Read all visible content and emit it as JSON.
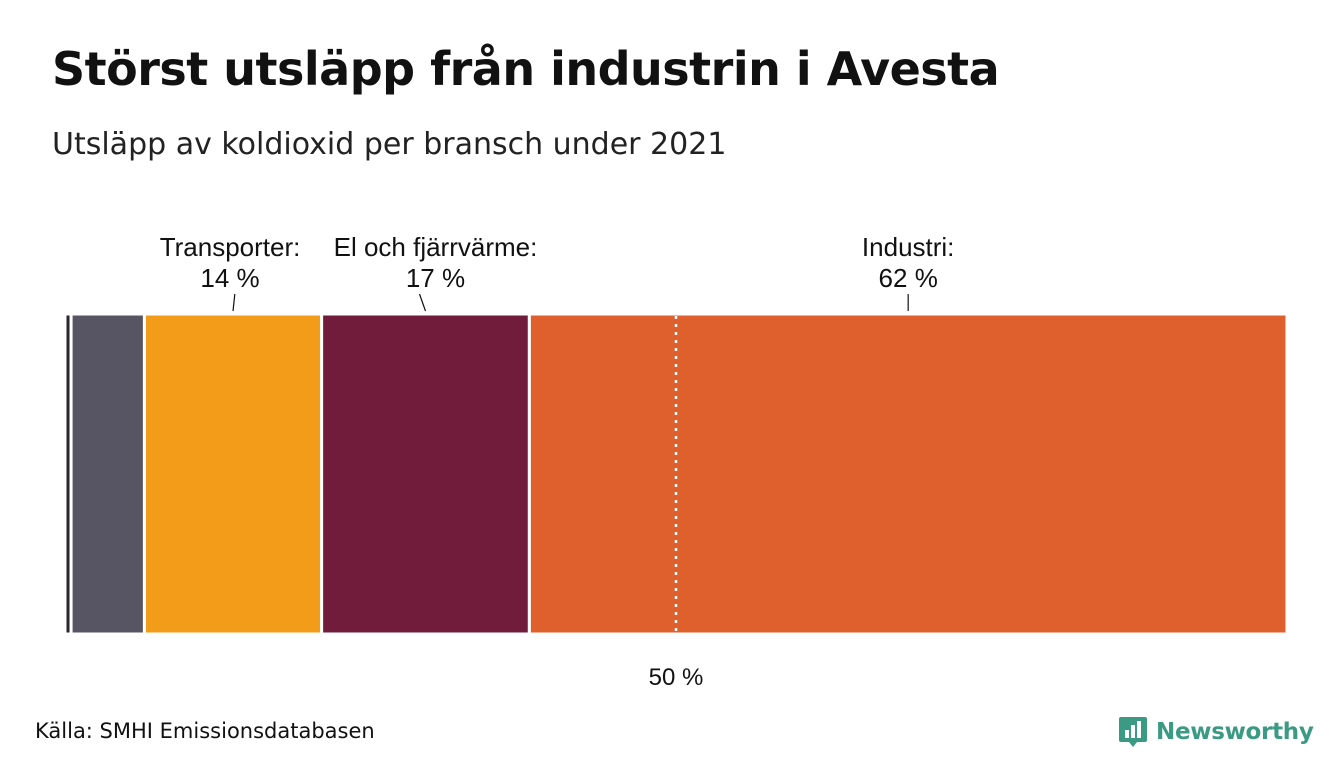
{
  "title": "Störst utsläpp från industrin i Avesta",
  "subtitle": "Utsläpp av koldioxid per bransch under 2021",
  "source": "Källa: SMHI Emissionsdatabasen",
  "brand": {
    "name": "Newsworthy",
    "icon": "newsworthy-logo-icon",
    "color": "#3a9a84"
  },
  "chart_data": {
    "type": "bar",
    "orientation": "horizontal-stacked",
    "unit": "%",
    "xlim": [
      0,
      100
    ],
    "segments": [
      {
        "value": 0.5,
        "color": "#2a2630",
        "label": "",
        "value_label": ""
      },
      {
        "value": 6,
        "color": "#575564",
        "label": "",
        "value_label": ""
      },
      {
        "value": 14.5,
        "color": "#f39c1a",
        "label": "Transporter:",
        "value_label": "14 %"
      },
      {
        "value": 17,
        "color": "#721c3c",
        "label": "El och fjärrvärme:",
        "value_label": "17 %"
      },
      {
        "value": 62,
        "color": "#e0602d",
        "label": "Industri:",
        "value_label": "62 %"
      }
    ],
    "reference_line": {
      "value": 50,
      "label": "50 %"
    }
  }
}
